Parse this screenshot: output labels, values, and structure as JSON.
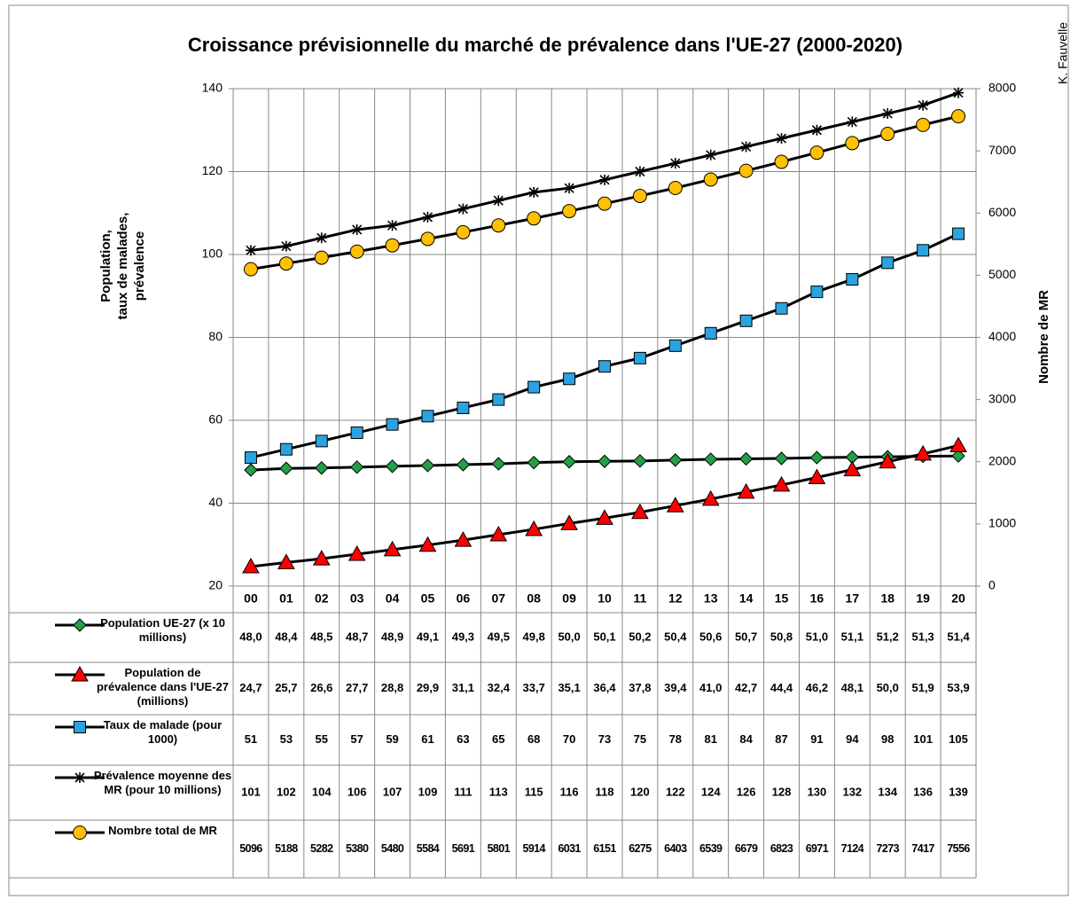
{
  "chart_data": {
    "type": "line",
    "title": "Croissance prévisionnelle du marché de prévalence dans l'UE-27 (2000-2020)",
    "ylabel": [
      "Population,",
      "taux de malades,",
      "prévalence"
    ],
    "y2label": "Nombre de MR",
    "credit": "K. Fauvelle",
    "categories": [
      "00",
      "01",
      "02",
      "03",
      "04",
      "05",
      "06",
      "07",
      "08",
      "09",
      "10",
      "11",
      "12",
      "13",
      "14",
      "15",
      "16",
      "17",
      "18",
      "19",
      "20"
    ],
    "ylim": [
      20,
      140
    ],
    "yticks": [
      20,
      40,
      60,
      80,
      100,
      120,
      140
    ],
    "y2lim": [
      0,
      8000
    ],
    "y2ticks": [
      0,
      1000,
      2000,
      3000,
      4000,
      5000,
      6000,
      7000,
      8000
    ],
    "grid": true,
    "series": [
      {
        "name": "Population UE-27 (x 10 millions)",
        "color": "#22a046",
        "marker": "diamond",
        "values": [
          48.0,
          48.4,
          48.5,
          48.7,
          48.9,
          49.1,
          49.3,
          49.5,
          49.8,
          50.0,
          50.1,
          50.2,
          50.4,
          50.6,
          50.7,
          50.8,
          51.0,
          51.1,
          51.2,
          51.3,
          51.4
        ],
        "value_labels": [
          "48,0",
          "48,4",
          "48,5",
          "48,7",
          "48,9",
          "49,1",
          "49,3",
          "49,5",
          "49,8",
          "50,0",
          "50,1",
          "50,2",
          "50,4",
          "50,6",
          "50,7",
          "50,8",
          "51,0",
          "51,1",
          "51,2",
          "51,3",
          "51,4"
        ]
      },
      {
        "name": "Population de prévalence dans l'UE-27 (millions)",
        "color": "#ff0000",
        "marker": "triangle",
        "values": [
          24.7,
          25.7,
          26.6,
          27.7,
          28.8,
          29.9,
          31.1,
          32.4,
          33.7,
          35.1,
          36.4,
          37.8,
          39.4,
          41.0,
          42.7,
          44.4,
          46.2,
          48.1,
          50.0,
          51.9,
          53.9
        ],
        "value_labels": [
          "24,7",
          "25,7",
          "26,6",
          "27,7",
          "28,8",
          "29,9",
          "31,1",
          "32,4",
          "33,7",
          "35,1",
          "36,4",
          "37,8",
          "39,4",
          "41,0",
          "42,7",
          "44,4",
          "46,2",
          "48,1",
          "50,0",
          "51,9",
          "53,9"
        ]
      },
      {
        "name": "Taux de malade (pour 1000)",
        "color": "#2aa3e0",
        "marker": "square",
        "values": [
          51,
          53,
          55,
          57,
          59,
          61,
          63,
          65,
          68,
          70,
          73,
          75,
          78,
          81,
          84,
          87,
          91,
          94,
          98,
          101,
          105
        ]
      },
      {
        "name": "Prévalence moyenne des MR (pour 10 millions)",
        "color": "#000000",
        "marker": "star",
        "values": [
          101,
          102,
          104,
          106,
          107,
          109,
          111,
          113,
          115,
          116,
          118,
          120,
          122,
          124,
          126,
          128,
          130,
          132,
          134,
          136,
          139
        ]
      },
      {
        "name": "Nombre total de MR",
        "color": "#ffc000",
        "marker": "circle",
        "axis": "y2",
        "values": [
          5096,
          5188,
          5282,
          5380,
          5480,
          5584,
          5691,
          5801,
          5914,
          6031,
          6151,
          6275,
          6403,
          6539,
          6679,
          6823,
          6971,
          7124,
          7273,
          7417,
          7556
        ]
      }
    ]
  }
}
